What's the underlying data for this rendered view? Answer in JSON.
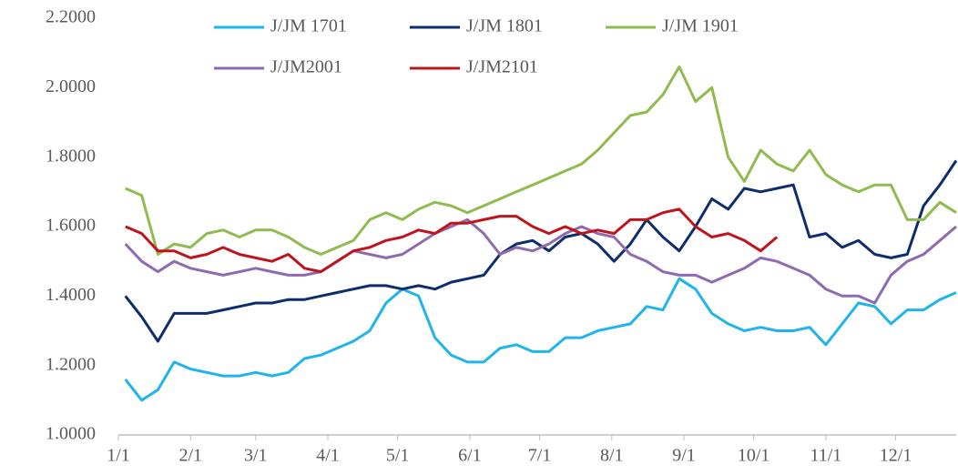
{
  "chart_data": {
    "type": "line",
    "x": [
      3,
      10,
      17,
      24,
      31,
      38,
      45,
      52,
      59,
      66,
      73,
      80,
      87,
      94,
      101,
      108,
      115,
      122,
      129,
      136,
      143,
      150,
      157,
      164,
      171,
      178,
      185,
      192,
      199,
      206,
      213,
      220,
      227,
      234,
      241,
      248,
      255,
      262,
      269,
      276,
      283,
      290,
      297,
      304,
      311,
      318,
      325,
      332,
      339,
      346,
      353,
      360
    ],
    "xlim": [
      0,
      360
    ],
    "xticks": [
      {
        "value": 0,
        "label": "1/1"
      },
      {
        "value": 31,
        "label": "2/1"
      },
      {
        "value": 59,
        "label": "3/1"
      },
      {
        "value": 90,
        "label": "4/1"
      },
      {
        "value": 120,
        "label": "5/1"
      },
      {
        "value": 151,
        "label": "6/1"
      },
      {
        "value": 181,
        "label": "7/1"
      },
      {
        "value": 212,
        "label": "8/1"
      },
      {
        "value": 243,
        "label": "9/1"
      },
      {
        "value": 273,
        "label": "10/1"
      },
      {
        "value": 304,
        "label": "11/1"
      },
      {
        "value": 334,
        "label": "12/1"
      }
    ],
    "ylim": [
      1.0,
      2.2
    ],
    "yticks": [
      {
        "value": 1.0,
        "label": "1.0000"
      },
      {
        "value": 1.2,
        "label": "1.2000"
      },
      {
        "value": 1.4,
        "label": "1.4000"
      },
      {
        "value": 1.6,
        "label": "1.6000"
      },
      {
        "value": 1.8,
        "label": "1.8000"
      },
      {
        "value": 2.0,
        "label": "2.0000"
      },
      {
        "value": 2.2,
        "label": "2.2000"
      }
    ],
    "grid": false,
    "legend": "top",
    "series": [
      {
        "name": "J/JM 1701",
        "color": "#1fb4ea",
        "values": [
          1.16,
          1.1,
          1.13,
          1.21,
          1.19,
          1.18,
          1.17,
          1.17,
          1.18,
          1.17,
          1.18,
          1.22,
          1.23,
          1.25,
          1.27,
          1.3,
          1.38,
          1.42,
          1.4,
          1.28,
          1.23,
          1.21,
          1.21,
          1.25,
          1.26,
          1.24,
          1.24,
          1.28,
          1.28,
          1.3,
          1.31,
          1.32,
          1.37,
          1.36,
          1.45,
          1.42,
          1.35,
          1.32,
          1.3,
          1.31,
          1.3,
          1.3,
          1.31,
          1.26,
          1.32,
          1.38,
          1.37,
          1.32,
          1.36,
          1.36,
          1.39,
          1.41
        ]
      },
      {
        "name": "J/JM 1801",
        "color": "#0d2d6c",
        "values": [
          1.4,
          1.34,
          1.27,
          1.35,
          1.35,
          1.35,
          1.36,
          1.37,
          1.38,
          1.38,
          1.39,
          1.39,
          1.4,
          1.41,
          1.42,
          1.43,
          1.43,
          1.42,
          1.43,
          1.42,
          1.44,
          1.45,
          1.46,
          1.52,
          1.55,
          1.56,
          1.53,
          1.57,
          1.58,
          1.55,
          1.5,
          1.55,
          1.62,
          1.57,
          1.53,
          1.6,
          1.68,
          1.65,
          1.71,
          1.7,
          1.71,
          1.72,
          1.57,
          1.58,
          1.54,
          1.56,
          1.52,
          1.51,
          1.52,
          1.66,
          1.72,
          1.79
        ]
      },
      {
        "name": "J/JM 1901",
        "color": "#8fbb4f",
        "values": [
          1.71,
          1.69,
          1.52,
          1.55,
          1.54,
          1.58,
          1.59,
          1.57,
          1.59,
          1.59,
          1.57,
          1.54,
          1.52,
          1.54,
          1.56,
          1.62,
          1.64,
          1.62,
          1.65,
          1.67,
          1.66,
          1.64,
          1.66,
          1.68,
          1.7,
          1.72,
          1.74,
          1.76,
          1.78,
          1.82,
          1.87,
          1.92,
          1.93,
          1.98,
          2.06,
          1.96,
          2.0,
          1.8,
          1.73,
          1.82,
          1.78,
          1.76,
          1.82,
          1.75,
          1.72,
          1.7,
          1.72,
          1.72,
          1.62,
          1.62,
          1.67,
          1.64
        ]
      },
      {
        "name": "J/JM2001",
        "color": "#8e6bb0",
        "values": [
          1.55,
          1.5,
          1.47,
          1.5,
          1.48,
          1.47,
          1.46,
          1.47,
          1.48,
          1.47,
          1.46,
          1.46,
          1.47,
          1.5,
          1.53,
          1.52,
          1.51,
          1.52,
          1.55,
          1.58,
          1.6,
          1.62,
          1.58,
          1.52,
          1.54,
          1.53,
          1.55,
          1.58,
          1.6,
          1.58,
          1.57,
          1.52,
          1.5,
          1.47,
          1.46,
          1.46,
          1.44,
          1.46,
          1.48,
          1.51,
          1.5,
          1.48,
          1.46,
          1.42,
          1.4,
          1.4,
          1.38,
          1.46,
          1.5,
          1.52,
          1.56,
          1.6
        ]
      },
      {
        "name": "J/JM2101",
        "color": "#c0141c",
        "values": [
          1.6,
          1.58,
          1.53,
          1.53,
          1.51,
          1.52,
          1.54,
          1.52,
          1.51,
          1.5,
          1.52,
          1.48,
          1.47,
          1.5,
          1.53,
          1.54,
          1.56,
          1.57,
          1.59,
          1.58,
          1.61,
          1.61,
          1.62,
          1.63,
          1.63,
          1.6,
          1.58,
          1.6,
          1.58,
          1.59,
          1.58,
          1.62,
          1.62,
          1.64,
          1.65,
          1.6,
          1.57,
          1.58,
          1.56,
          1.53,
          1.57,
          null,
          null,
          null,
          null,
          null,
          null,
          null,
          null,
          null,
          null,
          null
        ]
      }
    ]
  }
}
